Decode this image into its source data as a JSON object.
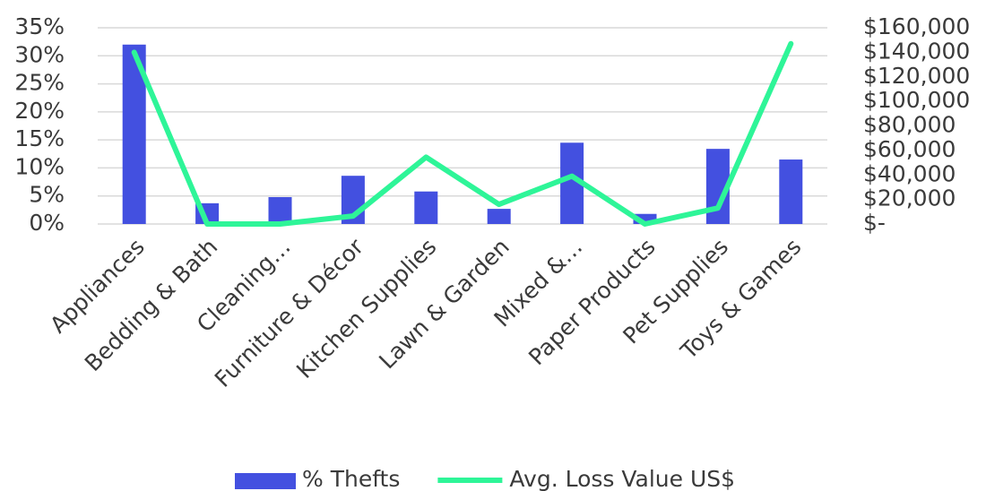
{
  "chart_data": {
    "type": "bar_line",
    "categories": [
      "Appliances",
      "Bedding & Bath",
      "Cleaning…",
      "Furniture & Décor",
      "Kitchen Supplies",
      "Lawn & Garden",
      "Mixed &…",
      "Paper Products",
      "Pet Supplies",
      "Toys & Games"
    ],
    "series": [
      {
        "name": "% Thefts",
        "type": "bar",
        "color": "#4350e0",
        "values": [
          32,
          3.7,
          4.8,
          8.6,
          5.8,
          2.7,
          14.5,
          1.8,
          13.4,
          11.5
        ]
      },
      {
        "name": "Avg. Loss Value US$",
        "type": "line",
        "axis": "y2",
        "color": "#2ef598",
        "values": [
          140000,
          0,
          0,
          6500,
          54500,
          16000,
          39000,
          0,
          13000,
          147000
        ]
      }
    ],
    "ylim": [
      0,
      35
    ],
    "yticks": [
      {
        "value": 0,
        "label": "0%"
      },
      {
        "value": 5,
        "label": "5%"
      },
      {
        "value": 10,
        "label": "10%"
      },
      {
        "value": 15,
        "label": "15%"
      },
      {
        "value": 20,
        "label": "20%"
      },
      {
        "value": 25,
        "label": "25%"
      },
      {
        "value": 30,
        "label": "30%"
      },
      {
        "value": 35,
        "label": "35%"
      }
    ],
    "y2lim": [
      0,
      160000
    ],
    "y2ticks": [
      {
        "value": 0,
        "label": "$-"
      },
      {
        "value": 20000,
        "label": "$20,000"
      },
      {
        "value": 40000,
        "label": "$40,000"
      },
      {
        "value": 60000,
        "label": "$60,000"
      },
      {
        "value": 80000,
        "label": "$80,000"
      },
      {
        "value": 100000,
        "label": "$100,000"
      },
      {
        "value": 120000,
        "label": "$120,000"
      },
      {
        "value": 140000,
        "label": "$140,000"
      },
      {
        "value": 160000,
        "label": "$160,000"
      }
    ],
    "grid": true,
    "legend": "bottom"
  }
}
